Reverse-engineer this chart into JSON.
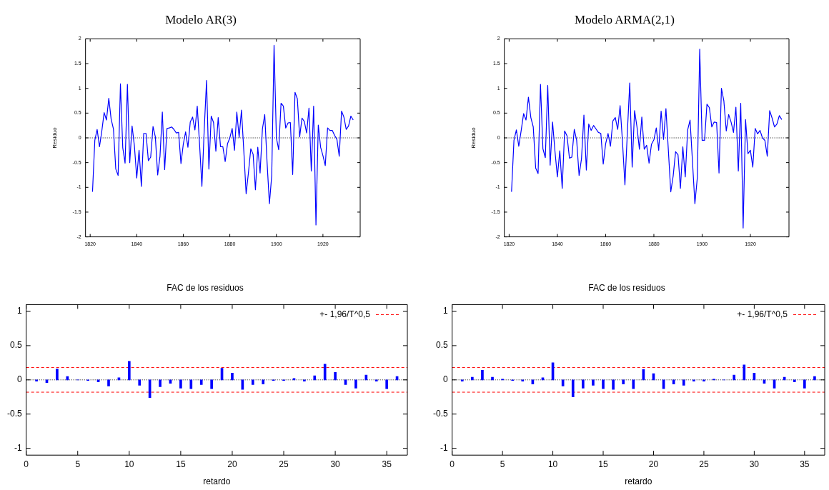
{
  "chart_data": [
    {
      "type": "line",
      "title": "Modelo AR(3)",
      "ylabel": "Residuo",
      "xlim": [
        1818,
        1936
      ],
      "xticks": [
        1820,
        1840,
        1860,
        1880,
        1900,
        1920
      ],
      "ylim": [
        -2,
        2
      ],
      "yticks": [
        -2,
        -1.5,
        -1,
        -0.5,
        0,
        0.5,
        1,
        1.5,
        2
      ],
      "grid": false,
      "color": "#0000ff",
      "x": [
        1821,
        1822,
        1823,
        1824,
        1825,
        1826,
        1827,
        1828,
        1829,
        1830,
        1831,
        1832,
        1833,
        1834,
        1835,
        1836,
        1837,
        1838,
        1839,
        1840,
        1841,
        1842,
        1843,
        1844,
        1845,
        1846,
        1847,
        1848,
        1849,
        1850,
        1851,
        1852,
        1853,
        1854,
        1855,
        1856,
        1857,
        1858,
        1859,
        1860,
        1861,
        1862,
        1863,
        1864,
        1865,
        1866,
        1867,
        1868,
        1869,
        1870,
        1871,
        1872,
        1873,
        1874,
        1875,
        1876,
        1877,
        1878,
        1879,
        1880,
        1881,
        1882,
        1883,
        1884,
        1885,
        1886,
        1887,
        1888,
        1889,
        1890,
        1891,
        1892,
        1893,
        1894,
        1895,
        1896,
        1897,
        1898,
        1899,
        1900,
        1901,
        1902,
        1903,
        1904,
        1905,
        1906,
        1907,
        1908,
        1909,
        1910,
        1911,
        1912,
        1913,
        1914,
        1915,
        1916,
        1917,
        1918,
        1919,
        1920,
        1921,
        1922,
        1923,
        1924,
        1925,
        1926,
        1927,
        1928,
        1929,
        1930,
        1931,
        1932,
        1933
      ],
      "values": [
        -1.09,
        -0.05,
        0.17,
        -0.18,
        0.14,
        0.51,
        0.36,
        0.8,
        0.38,
        0.18,
        -0.63,
        -0.76,
        1.09,
        -0.2,
        -0.51,
        1.08,
        -0.5,
        0.24,
        -0.16,
        -0.81,
        -0.25,
        -0.98,
        0.09,
        0.09,
        -0.46,
        -0.39,
        0.23,
        0.02,
        -0.75,
        -0.37,
        0.52,
        -0.64,
        0.19,
        0.2,
        0.22,
        0.17,
        0.1,
        0.11,
        -0.52,
        -0.13,
        0.12,
        -0.19,
        0.32,
        0.42,
        0.16,
        0.64,
        -0.13,
        -0.98,
        0.17,
        1.16,
        -0.63,
        0.44,
        0.31,
        -0.27,
        0.41,
        -0.18,
        -0.18,
        -0.48,
        -0.12,
        0,
        0.19,
        -0.25,
        0.52,
        0.01,
        0.56,
        -0.26,
        -1.13,
        -0.7,
        -0.22,
        -0.33,
        -1.05,
        -0.19,
        -0.71,
        0.18,
        0.47,
        -0.5,
        -1.33,
        -0.76,
        1.87,
        0,
        -0.24,
        0.7,
        0.64,
        0.2,
        0.3,
        0.31,
        -0.74,
        0.92,
        0.79,
        0.02,
        0.4,
        0.33,
        0.1,
        0.6,
        -0.67,
        0.64,
        -1.76,
        0.26,
        -0.19,
        -0.36,
        -0.56,
        0.2,
        0.15,
        0.15,
        0.05,
        -0.03,
        -0.37,
        0.54,
        0.42,
        0.17,
        0.24,
        0.44,
        0.36
      ],
      "ref_lines": [
        {
          "axis": "y",
          "value": 0,
          "color": "#000000",
          "line_style": "dotted"
        }
      ]
    },
    {
      "type": "line",
      "title": "Modelo ARMA(2,1)",
      "ylabel": "Residuo",
      "xlim": [
        1818,
        1936
      ],
      "xticks": [
        1820,
        1840,
        1860,
        1880,
        1900,
        1920
      ],
      "ylim": [
        -2,
        2
      ],
      "yticks": [
        -2,
        -1.5,
        -1,
        -0.5,
        0,
        0.5,
        1,
        1.5,
        2
      ],
      "grid": false,
      "color": "#0000ff",
      "x": [
        1821,
        1822,
        1823,
        1824,
        1825,
        1826,
        1827,
        1828,
        1829,
        1830,
        1831,
        1832,
        1833,
        1834,
        1835,
        1836,
        1837,
        1838,
        1839,
        1840,
        1841,
        1842,
        1843,
        1844,
        1845,
        1846,
        1847,
        1848,
        1849,
        1850,
        1851,
        1852,
        1853,
        1854,
        1855,
        1856,
        1857,
        1858,
        1859,
        1860,
        1861,
        1862,
        1863,
        1864,
        1865,
        1866,
        1867,
        1868,
        1869,
        1870,
        1871,
        1872,
        1873,
        1874,
        1875,
        1876,
        1877,
        1878,
        1879,
        1880,
        1881,
        1882,
        1883,
        1884,
        1885,
        1886,
        1887,
        1888,
        1889,
        1890,
        1891,
        1892,
        1893,
        1894,
        1895,
        1896,
        1897,
        1898,
        1899,
        1900,
        1901,
        1902,
        1903,
        1904,
        1905,
        1906,
        1907,
        1908,
        1909,
        1910,
        1911,
        1912,
        1913,
        1914,
        1915,
        1916,
        1917,
        1918,
        1919,
        1920,
        1921,
        1922,
        1923,
        1924,
        1925,
        1926,
        1927,
        1928,
        1929,
        1930,
        1931,
        1932,
        1933
      ],
      "values": [
        -1.09,
        -0.05,
        0.16,
        -0.17,
        0.15,
        0.49,
        0.36,
        0.82,
        0.41,
        0.22,
        -0.61,
        -0.72,
        1.08,
        -0.22,
        -0.4,
        1.06,
        -0.55,
        0.32,
        -0.27,
        -0.79,
        -0.26,
        -1.02,
        0.14,
        0.04,
        -0.41,
        -0.39,
        0.17,
        -0.05,
        -0.76,
        -0.42,
        0.46,
        -0.65,
        0.28,
        0.15,
        0.25,
        0.18,
        0.11,
        0.09,
        -0.53,
        -0.12,
        0.09,
        -0.17,
        0.34,
        0.41,
        0.17,
        0.65,
        -0.09,
        -0.95,
        0.1,
        1.11,
        -0.59,
        0.55,
        0.22,
        -0.23,
        0.42,
        -0.23,
        -0.15,
        -0.51,
        -0.13,
        -0.04,
        0.2,
        -0.25,
        0.54,
        -0.03,
        0.59,
        -0.25,
        -1.09,
        -0.77,
        -0.28,
        -0.34,
        -1.02,
        -0.18,
        -0.79,
        0.16,
        0.36,
        -0.48,
        -1.33,
        -0.81,
        1.79,
        -0.05,
        -0.05,
        0.68,
        0.61,
        0.22,
        0.32,
        0.31,
        -0.71,
        1,
        0.75,
        0.14,
        0.47,
        0.32,
        0.11,
        0.62,
        -0.67,
        0.7,
        -1.82,
        0.37,
        -0.32,
        -0.25,
        -0.59,
        0.19,
        0.08,
        0.15,
        0,
        -0.05,
        -0.37,
        0.55,
        0.4,
        0.22,
        0.28,
        0.45,
        0.37
      ],
      "ref_lines": [
        {
          "axis": "y",
          "value": 0,
          "color": "#000000",
          "line_style": "dotted"
        }
      ]
    },
    {
      "type": "bar",
      "title": "FAC de los residuos",
      "xlabel": "retardo",
      "xlim": [
        0,
        37
      ],
      "xticks": [
        0,
        5,
        10,
        15,
        20,
        25,
        30,
        35
      ],
      "ylim": [
        -1.1,
        1.1
      ],
      "yticks": [
        -1,
        -0.5,
        0,
        0.5,
        1
      ],
      "grid": false,
      "color": "#0000ff",
      "legend": "top right",
      "x": [
        1,
        2,
        3,
        4,
        5,
        6,
        7,
        8,
        9,
        10,
        11,
        12,
        13,
        14,
        15,
        16,
        17,
        18,
        19,
        20,
        21,
        22,
        23,
        24,
        25,
        26,
        27,
        28,
        29,
        30,
        31,
        32,
        33,
        34,
        35,
        36
      ],
      "values": [
        -0.02,
        -0.04,
        0.16,
        0.05,
        0,
        -0.01,
        -0.03,
        -0.09,
        0.03,
        0.27,
        -0.08,
        -0.26,
        -0.1,
        -0.05,
        -0.12,
        -0.13,
        -0.07,
        -0.13,
        0.17,
        0.1,
        -0.14,
        -0.07,
        -0.06,
        -0.01,
        -0.01,
        0.02,
        -0.02,
        0.06,
        0.23,
        0.11,
        -0.07,
        -0.12,
        0.07,
        -0.02,
        -0.13,
        0.05
      ],
      "ref_lines": [
        {
          "axis": "y",
          "value": 0,
          "color": "#000000",
          "line_style": "dotted"
        },
        {
          "axis": "y",
          "value": 0.18,
          "color": "#ff0000",
          "line_style": "dashed",
          "label": "+- 1,96/T^0,5"
        },
        {
          "axis": "y",
          "value": -0.18,
          "color": "#ff0000",
          "line_style": "dashed"
        }
      ]
    },
    {
      "type": "bar",
      "title": "FAC de los residuos",
      "xlabel": "retardo",
      "xlim": [
        0,
        37
      ],
      "xticks": [
        0,
        5,
        10,
        15,
        20,
        25,
        30,
        35
      ],
      "ylim": [
        -1.1,
        1.1
      ],
      "yticks": [
        -1,
        -0.5,
        0,
        0.5,
        1
      ],
      "grid": false,
      "color": "#0000ff",
      "legend": "top right",
      "x": [
        1,
        2,
        3,
        4,
        5,
        6,
        7,
        8,
        9,
        10,
        11,
        12,
        13,
        14,
        15,
        16,
        17,
        18,
        19,
        20,
        21,
        22,
        23,
        24,
        25,
        26,
        27,
        28,
        29,
        30,
        31,
        32,
        33,
        34,
        35,
        36
      ],
      "values": [
        -0.02,
        0.04,
        0.14,
        0.04,
        0.01,
        -0.01,
        -0.02,
        -0.06,
        0.03,
        0.25,
        -0.09,
        -0.25,
        -0.12,
        -0.08,
        -0.13,
        -0.14,
        -0.06,
        -0.13,
        0.15,
        0.09,
        -0.13,
        -0.06,
        -0.08,
        -0.02,
        -0.02,
        0.01,
        0,
        0.07,
        0.22,
        0.1,
        -0.05,
        -0.12,
        0.04,
        -0.03,
        -0.12,
        0.05
      ],
      "ref_lines": [
        {
          "axis": "y",
          "value": 0,
          "color": "#000000",
          "line_style": "dotted"
        },
        {
          "axis": "y",
          "value": 0.18,
          "color": "#ff0000",
          "line_style": "dashed",
          "label": "+- 1,96/T^0,5"
        },
        {
          "axis": "y",
          "value": -0.18,
          "color": "#ff0000",
          "line_style": "dashed"
        }
      ]
    }
  ]
}
